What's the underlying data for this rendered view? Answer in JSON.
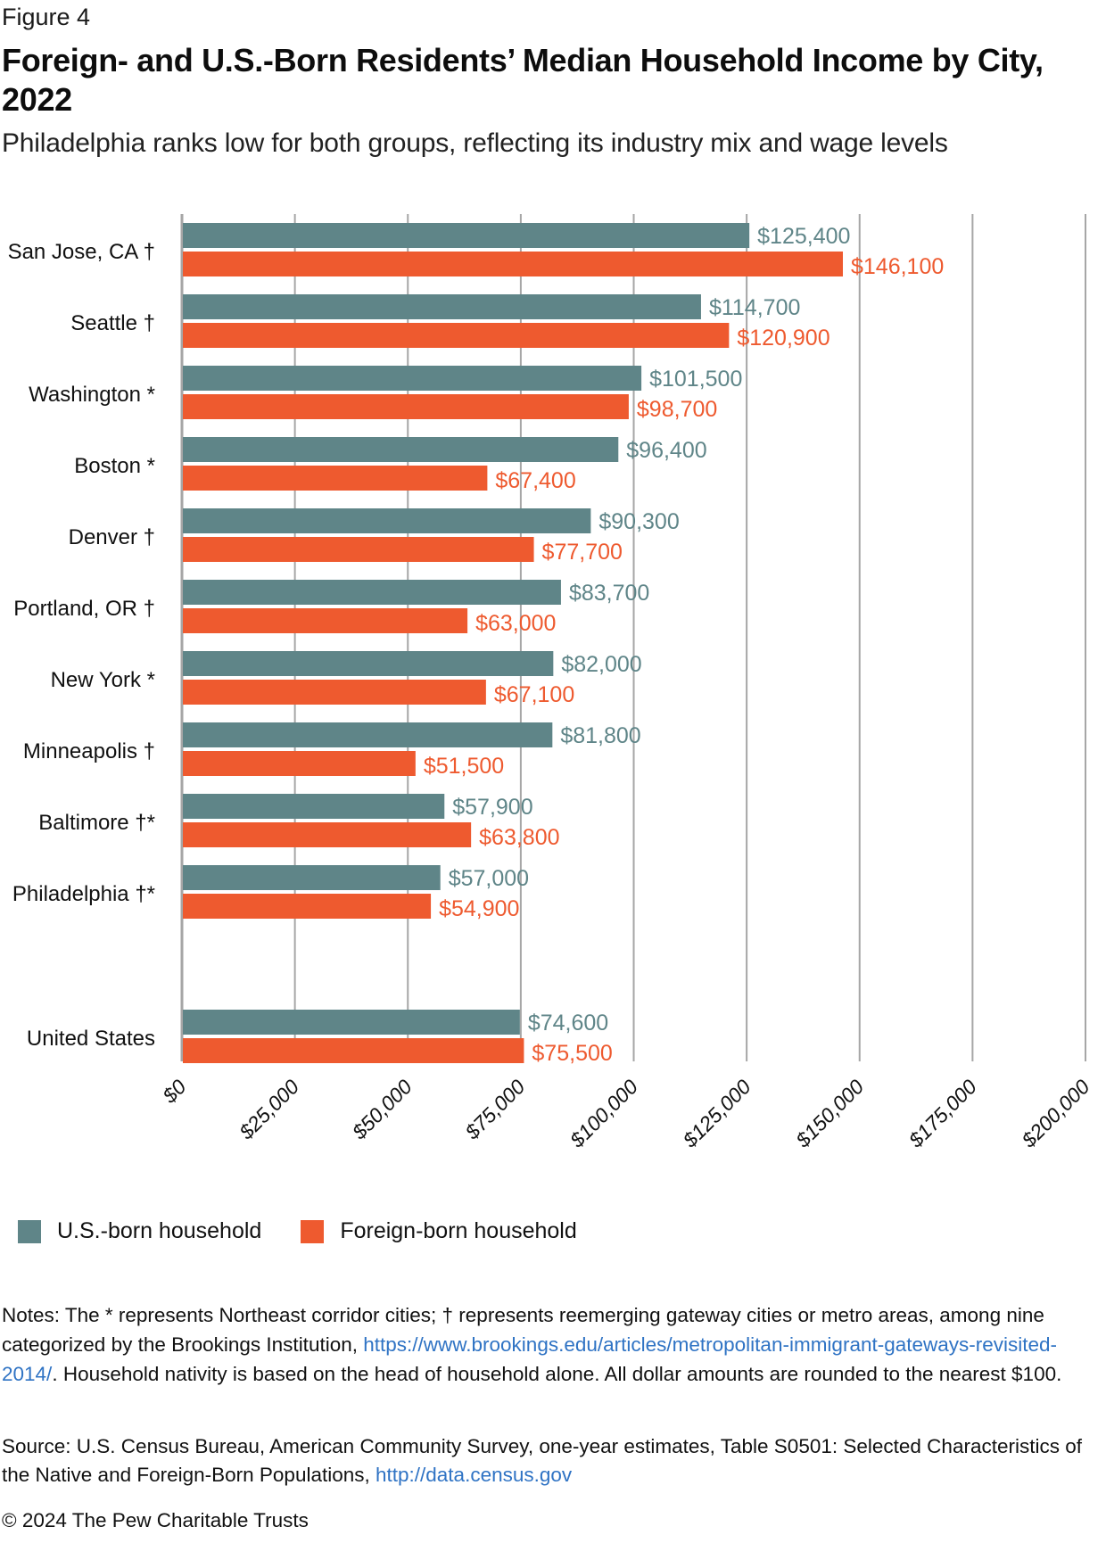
{
  "figure_label": "Figure 4",
  "title": "Foreign- and U.S.-Born Residents’ Median Household Income by City, 2022",
  "subtitle": "Philadelphia ranks low for both groups, reflecting its industry mix and wage levels",
  "colors": {
    "us_born": "#5f8588",
    "foreign_born": "#ee5a2f",
    "gridline": "#a6a6a6",
    "link": "#2f73c4"
  },
  "chart_data": {
    "type": "bar",
    "orientation": "horizontal",
    "title": "Foreign- and U.S.-Born Residents’ Median Household Income by City, 2022",
    "xlabel": "",
    "ylabel": "",
    "xlim": [
      0,
      200000
    ],
    "grid": true,
    "legend_position": "bottom-left",
    "categories": [
      "San Jose, CA †",
      "Seattle †",
      "Washington *",
      "Boston *",
      "Denver †",
      "Portland, OR †",
      "New York *",
      "Minneapolis †",
      "Baltimore †*",
      "Philadelphia †*",
      "United States"
    ],
    "series": [
      {
        "name": "U.S.-born household",
        "color": "#5f8588",
        "values": [
          125400,
          114700,
          101500,
          96400,
          90300,
          83700,
          82000,
          81800,
          57900,
          57000,
          74600
        ],
        "labels": [
          "$125,400",
          "$114,700",
          "$101,500",
          "$96,400",
          "$90,300",
          "$83,700",
          "$82,000",
          "$81,800",
          "$57,900",
          "$57,000",
          "$74,600"
        ]
      },
      {
        "name": "Foreign-born household",
        "color": "#ee5a2f",
        "values": [
          146100,
          120900,
          98700,
          67400,
          77700,
          63000,
          67100,
          51500,
          63800,
          54900,
          75500
        ],
        "labels": [
          "$146,100",
          "$120,900",
          "$98,700",
          "$67,400",
          "$77,700",
          "$63,000",
          "$67,100",
          "$51,500",
          "$63,800",
          "$54,900",
          "$75,500"
        ]
      }
    ],
    "x_ticks": [
      0,
      25000,
      50000,
      75000,
      100000,
      125000,
      150000,
      175000,
      200000
    ],
    "x_tick_labels": [
      "$0",
      "$25,000",
      "$50,000",
      "$75,000",
      "$100,000",
      "$125,000",
      "$150,000",
      "$175,000",
      "$200,000"
    ]
  },
  "legend": {
    "us_born": "U.S.-born household",
    "foreign_born": "Foreign-born household"
  },
  "notes": {
    "text_before_link": "Notes: The * represents Northeast corridor cities; † represents reemerging gateway cities or metro areas, among nine categorized by the Brookings Institution, ",
    "link": "https://www.brookings.edu/articles/metropolitan-immigrant-gateways-revisited-2014/",
    "text_after_link": ". Household nativity is based on the head of household alone. All dollar amounts are rounded to the nearest $100."
  },
  "source": {
    "text_before_link": "Source: U.S. Census Bureau, American Community Survey, one-year estimates, Table S0501: Selected Characteristics of the Native and Foreign-Born Populations, ",
    "link": "http://data.census.gov"
  },
  "copyright": "© 2024 The Pew Charitable Trusts"
}
